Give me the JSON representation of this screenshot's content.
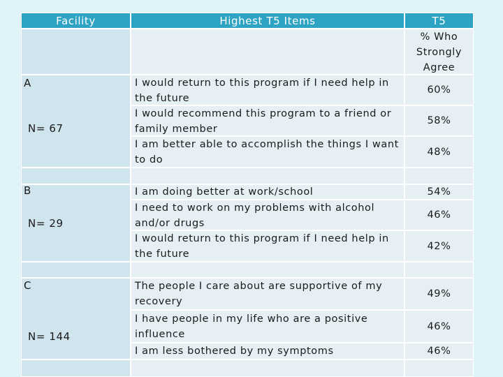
{
  "header": {
    "facility": "Facility",
    "items": "Highest T5 Items",
    "t5": "T5",
    "t5_sub": "% Who Strongly Agree"
  },
  "facilities": [
    {
      "name": "A",
      "n": "N= 67",
      "rows": [
        {
          "item": "I would return to this program if I need help in the future",
          "pct": "60%"
        },
        {
          "item": "I would recommend this program to a friend or family member",
          "pct": "58%"
        },
        {
          "item": "I am better able to accomplish the things I want to do",
          "pct": "48%"
        }
      ]
    },
    {
      "name": "B",
      "n": "N= 29",
      "rows": [
        {
          "item": "I am doing better at work/school",
          "pct": "54%"
        },
        {
          "item": "I need to work on my problems with alcohol and/or drugs",
          "pct": "46%"
        },
        {
          "item": "I would return to this program if I need help in the future",
          "pct": "42%"
        }
      ]
    },
    {
      "name": "C",
      "n": "N= 144",
      "rows": [
        {
          "item": "The people I care about are supportive of my recovery",
          "pct": "49%"
        },
        {
          "item": "I have people in my life who are a positive influence",
          "pct": "46%"
        },
        {
          "item": "I am less bothered by my symptoms",
          "pct": "46%"
        }
      ]
    }
  ]
}
